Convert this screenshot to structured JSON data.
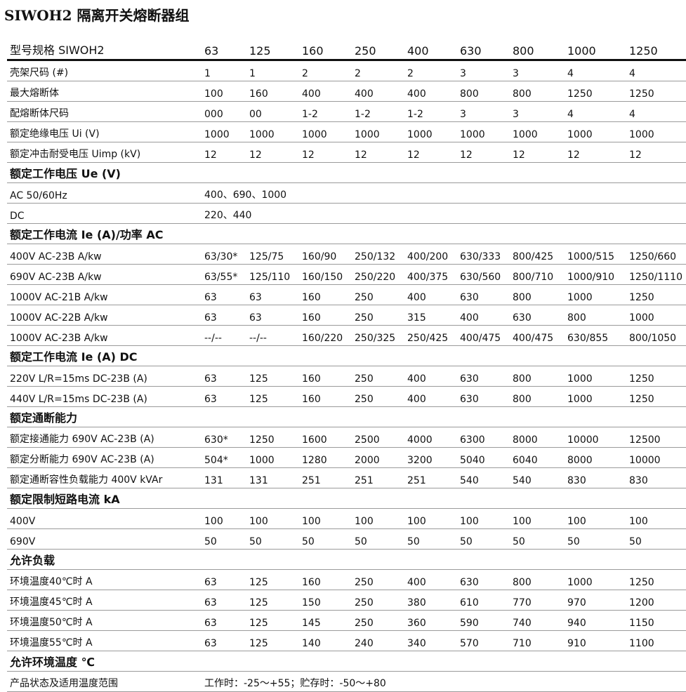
{
  "header": {
    "title": "SIWOH2 隔离开关熔断器组"
  },
  "table": {
    "header": [
      "型号规格 SIWOH2",
      "63",
      "125",
      "160",
      "250",
      "400",
      "630",
      "800",
      "1000",
      "1250"
    ],
    "rows": [
      [
        "壳架尺码 (#)",
        "1",
        "1",
        "2",
        "2",
        "2",
        "3",
        "3",
        "4",
        "4"
      ],
      [
        "最大熔断体",
        "100",
        "160",
        "400",
        "400",
        "400",
        "800",
        "800",
        "1250",
        "1250"
      ],
      [
        "配熔断体尺码",
        "000",
        "00",
        "1-2",
        "1-2",
        "1-2",
        "3",
        "3",
        "4",
        "4"
      ],
      [
        "额定绝缘电压 Ui (V)",
        "1000",
        "1000",
        "1000",
        "1000",
        "1000",
        "1000",
        "1000",
        "1000",
        "1000"
      ],
      [
        "额定冲击耐受电压 Uimp (kV)",
        "12",
        "12",
        "12",
        "12",
        "12",
        "12",
        "12",
        "12",
        "12"
      ],
      [
        "额定工作电压 Ue (V)"
      ],
      [
        "AC 50/60Hz",
        "400、690、1000"
      ],
      [
        "DC",
        "220、440"
      ],
      [
        "额定工作电流 Ie (A)/功率 AC"
      ],
      [
        "400V AC-23B A/kw",
        "63/30*",
        "125/75",
        "160/90",
        "250/132",
        "400/200",
        "630/333",
        "800/425",
        "1000/515",
        "1250/660"
      ],
      [
        "690V AC-23B A/kw",
        "63/55*",
        "125/110",
        "160/150",
        "250/220",
        "400/375",
        "630/560",
        "800/710",
        "1000/910",
        "1250/1110"
      ],
      [
        "1000V AC-21B A/kw",
        "63",
        "63",
        "160",
        "250",
        "400",
        "630",
        "800",
        "1000",
        "1250"
      ],
      [
        "1000V AC-22B A/kw",
        "63",
        "63",
        "160",
        "250",
        "315",
        "400",
        "630",
        "800",
        "1000"
      ],
      [
        "1000V AC-23B A/kw",
        "--/--",
        "--/--",
        "160/220",
        "250/325",
        "250/425",
        "400/475",
        "400/475",
        "630/855",
        "800/1050"
      ],
      [
        "额定工作电流 Ie (A) DC"
      ],
      [
        "220V L/R=15ms DC-23B (A)",
        "63",
        "125",
        "160",
        "250",
        "400",
        "630",
        "800",
        "1000",
        "1250"
      ],
      [
        "440V L/R=15ms DC-23B (A)",
        "63",
        "125",
        "160",
        "250",
        "400",
        "630",
        "800",
        "1000",
        "1250"
      ],
      [
        "额定通断能力"
      ],
      [
        "额定接通能力 690V AC-23B (A)",
        "630*",
        "1250",
        "1600",
        "2500",
        "4000",
        "6300",
        "8000",
        "10000",
        "12500"
      ],
      [
        "额定分断能力 690V AC-23B (A)",
        "504*",
        "1000",
        "1280",
        "2000",
        "3200",
        "5040",
        "6040",
        "8000",
        "10000"
      ],
      [
        "额定通断容性负载能力 400V kVAr",
        "131",
        "131",
        "251",
        "251",
        "251",
        "540",
        "540",
        "830",
        "830"
      ],
      [
        "额定限制短路电流 kA"
      ],
      [
        "400V",
        "100",
        "100",
        "100",
        "100",
        "100",
        "100",
        "100",
        "100",
        "100"
      ],
      [
        "690V",
        "50",
        "50",
        "50",
        "50",
        "50",
        "50",
        "50",
        "50",
        "50"
      ],
      [
        "允许负载"
      ],
      [
        "环境温度40℃时 A",
        "63",
        "125",
        "160",
        "250",
        "400",
        "630",
        "800",
        "1000",
        "1250"
      ],
      [
        "环境温度45℃时 A",
        "63",
        "125",
        "150",
        "250",
        "380",
        "610",
        "770",
        "970",
        "1200"
      ],
      [
        "环境温度50℃时 A",
        "63",
        "125",
        "145",
        "250",
        "360",
        "590",
        "740",
        "940",
        "1150"
      ],
      [
        "环境温度55℃时 A",
        "63",
        "125",
        "140",
        "240",
        "340",
        "570",
        "710",
        "910",
        "1100"
      ],
      [
        "允许环境温度 ℃"
      ],
      [
        "产品状态及适用温度范围",
        "工作时：-25～+55；贮存时：-50～+80"
      ]
    ]
  }
}
